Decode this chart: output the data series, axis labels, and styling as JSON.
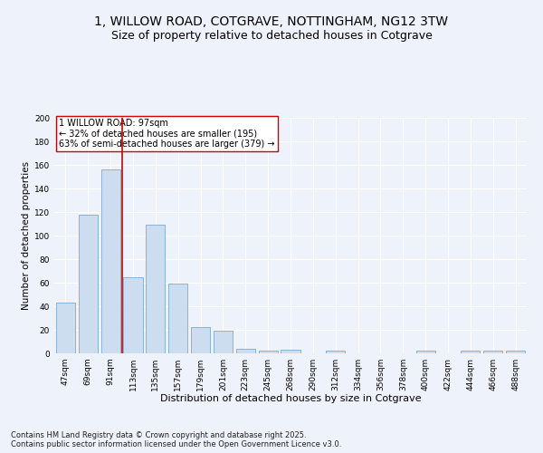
{
  "title": "1, WILLOW ROAD, COTGRAVE, NOTTINGHAM, NG12 3TW",
  "subtitle": "Size of property relative to detached houses in Cotgrave",
  "xlabel": "Distribution of detached houses by size in Cotgrave",
  "ylabel": "Number of detached properties",
  "categories": [
    "47sqm",
    "69sqm",
    "91sqm",
    "113sqm",
    "135sqm",
    "157sqm",
    "179sqm",
    "201sqm",
    "223sqm",
    "245sqm",
    "268sqm",
    "290sqm",
    "312sqm",
    "334sqm",
    "356sqm",
    "378sqm",
    "400sqm",
    "422sqm",
    "444sqm",
    "466sqm",
    "488sqm"
  ],
  "values": [
    43,
    118,
    156,
    65,
    109,
    59,
    22,
    19,
    4,
    2,
    3,
    0,
    2,
    0,
    0,
    0,
    2,
    0,
    2,
    2,
    2
  ],
  "bar_color": "#ccddf0",
  "bar_edge_color": "#7aaad0",
  "background_color": "#eef2fb",
  "grid_color": "#ffffff",
  "vline_x_index": 2.5,
  "vline_color": "#cc0000",
  "annotation_text": "1 WILLOW ROAD: 97sqm\n← 32% of detached houses are smaller (195)\n63% of semi-detached houses are larger (379) →",
  "annotation_box_color": "#ffffff",
  "annotation_box_edge": "#cc0000",
  "ylim": [
    0,
    200
  ],
  "yticks": [
    0,
    20,
    40,
    60,
    80,
    100,
    120,
    140,
    160,
    180,
    200
  ],
  "footer": "Contains HM Land Registry data © Crown copyright and database right 2025.\nContains public sector information licensed under the Open Government Licence v3.0.",
  "title_fontsize": 10,
  "subtitle_fontsize": 9,
  "xlabel_fontsize": 8,
  "ylabel_fontsize": 7.5,
  "tick_fontsize": 6.5,
  "annotation_fontsize": 7,
  "footer_fontsize": 6
}
